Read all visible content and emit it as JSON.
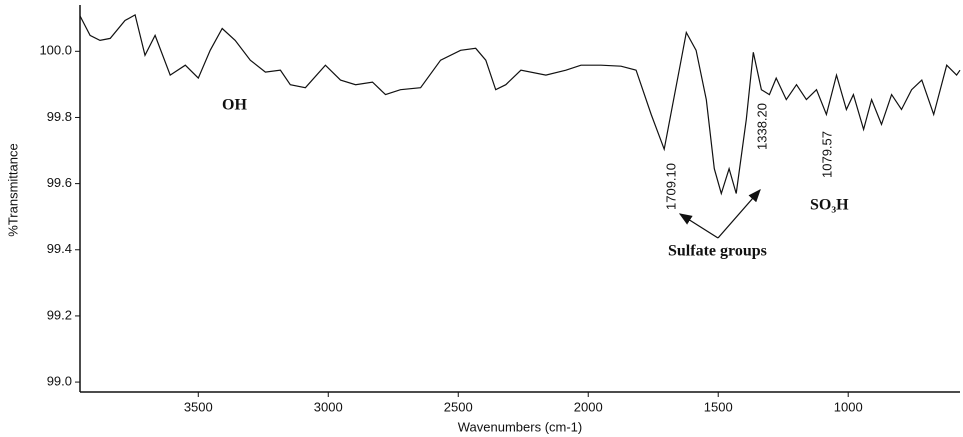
{
  "chart_data": {
    "type": "line",
    "xlabel": "Wavenumbers (cm-1)",
    "ylabel": "%Transmittance",
    "annotations": [
      "OH",
      "1709.10",
      "1338.20",
      "1079.57",
      "SO₃H",
      "Sulfate groups"
    ],
    "xlim": [
      3955,
      570
    ],
    "ylim": [
      98.97,
      100.14
    ],
    "xticks": [
      3500,
      3000,
      2500,
      2000,
      1500,
      1000
    ],
    "yticks": [
      {
        "value": 99.0,
        "label": "99.0"
      },
      99.2,
      99.4,
      99.6,
      99.8,
      {
        "value": 100.0,
        "label": "100.0"
      }
    ],
    "series": [
      {
        "color": "#111111",
        "x": [
          3955,
          3916,
          3878,
          3839,
          3782,
          3743,
          3705,
          3666,
          3608,
          3550,
          3500,
          3454,
          3408,
          3358,
          3300,
          3242,
          3184,
          3146,
          3088,
          3011,
          2953,
          2895,
          2830,
          2780,
          2722,
          2645,
          2568,
          2491,
          2433,
          2394,
          2356,
          2317,
          2259,
          2163,
          2086,
          2028,
          1951,
          1874,
          1816,
          1758,
          1708,
          1643,
          1623,
          1585,
          1546,
          1515,
          1488,
          1458,
          1431,
          1392,
          1365,
          1334,
          1303,
          1277,
          1238,
          1199,
          1161,
          1122,
          1084,
          1045,
          1007,
          980,
          941,
          910,
          872,
          833,
          795,
          756,
          717,
          671,
          621,
          583,
          570
        ],
        "values": [
          100.107,
          100.048,
          100.033,
          100.039,
          100.093,
          100.11,
          99.988,
          100.048,
          99.928,
          99.958,
          99.919,
          100.003,
          100.069,
          100.033,
          99.973,
          99.937,
          99.943,
          99.899,
          99.89,
          99.958,
          99.913,
          99.899,
          99.907,
          99.869,
          99.884,
          99.89,
          99.973,
          100.003,
          100.009,
          99.973,
          99.884,
          99.899,
          99.943,
          99.928,
          99.943,
          99.958,
          99.958,
          99.955,
          99.943,
          99.809,
          99.704,
          99.973,
          100.057,
          100.003,
          99.854,
          99.645,
          99.57,
          99.645,
          99.57,
          99.794,
          99.997,
          99.884,
          99.869,
          99.919,
          99.854,
          99.899,
          99.854,
          99.884,
          99.809,
          99.928,
          99.824,
          99.869,
          99.764,
          99.854,
          99.779,
          99.869,
          99.824,
          99.884,
          99.913,
          99.809,
          99.958,
          99.928,
          99.943
        ]
      }
    ]
  }
}
